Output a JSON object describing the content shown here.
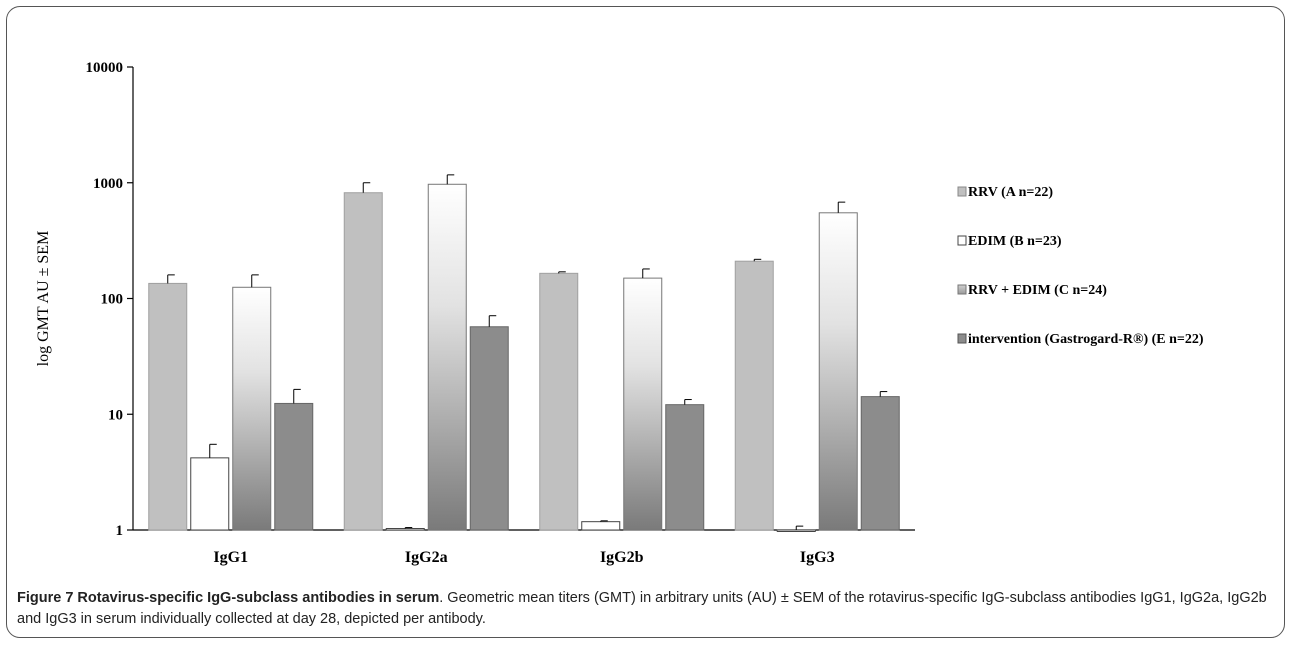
{
  "chart_data": {
    "type": "bar",
    "ylabel": "log GMT AU ± SEM",
    "yscale": "log",
    "ylim": [
      1,
      10000
    ],
    "yticks": [
      "1",
      "10",
      "100",
      "1000",
      "10000"
    ],
    "categories": [
      "IgG1",
      "IgG2a",
      "IgG2b",
      "IgG3"
    ],
    "series": [
      {
        "name": "RRV (A n=22)",
        "values": [
          135,
          820,
          165,
          210
        ],
        "errors": [
          25,
          180,
          5,
          8
        ],
        "color": "#c0c0c0"
      },
      {
        "name": "EDIM (B n=23)",
        "values": [
          4.2,
          1.03,
          1.18,
          1.0
        ],
        "errors": [
          1.3,
          0.02,
          0.02,
          0.08
        ],
        "color": "#ffffff"
      },
      {
        "name": "RRV + EDIM (C n=24)",
        "values": [
          125,
          970,
          150,
          550
        ],
        "errors": [
          35,
          200,
          30,
          130
        ],
        "color": "#a8a8a8"
      },
      {
        "name": "intervention (Gastrogard-R®) (E  n=22)",
        "values": [
          12.4,
          57,
          12.1,
          14.2
        ],
        "errors": [
          4,
          14,
          1.3,
          1.5
        ],
        "color": "#8c8c8c"
      }
    ],
    "legend_position": "right",
    "grid": false
  },
  "caption": {
    "label": "Figure 7 Rotavirus-specific IgG-subclass antibodies in serum",
    "text": ". Geometric mean titers (GMT) in arbitrary units (AU) ± SEM of the rotavirus-specific IgG-subclass antibodies IgG1, IgG2a, IgG2b and IgG3 in serum individually collected at day 28, depicted per antibody."
  }
}
